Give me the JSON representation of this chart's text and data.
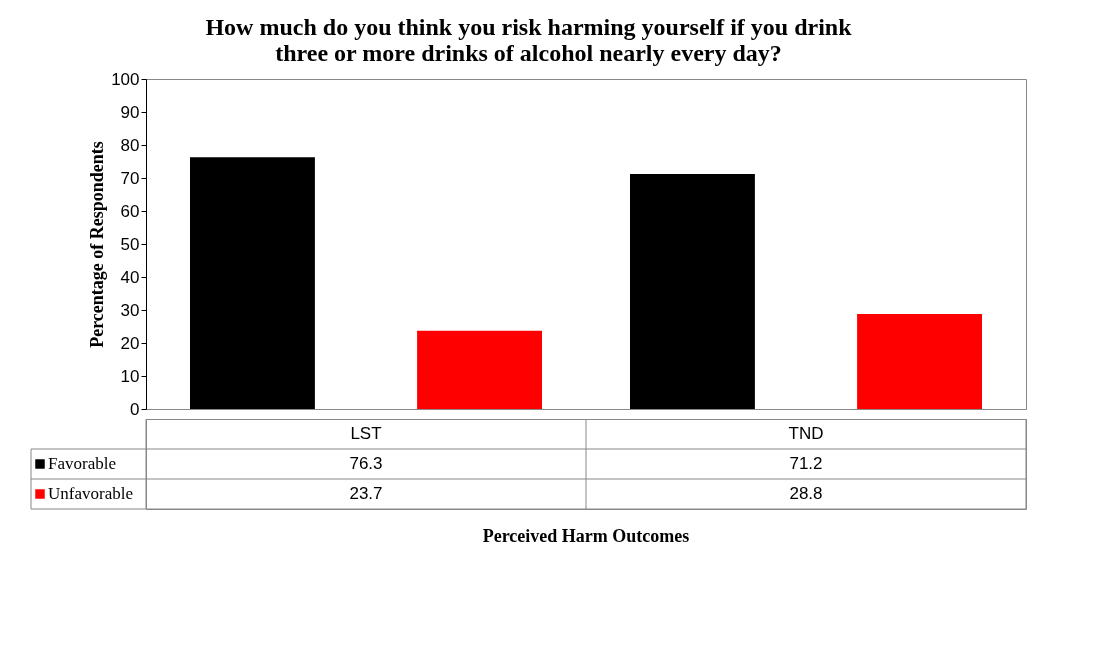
{
  "chart_data": {
    "type": "bar",
    "title": [
      "How much do you think you risk harming yourself if you drink",
      "three or more drinks of alcohol nearly every day?"
    ],
    "xlabel": "Perceived Harm Outcomes",
    "ylabel": "Percentage of Respondents",
    "categories": [
      "LST",
      "TND"
    ],
    "series": [
      {
        "name": "Favorable",
        "color": "#000000",
        "values": [
          76.3,
          71.2
        ]
      },
      {
        "name": "Unfavorable",
        "color": "#ff0000",
        "values": [
          23.7,
          28.8
        ]
      }
    ],
    "ylim": [
      0,
      100
    ],
    "yticks": [
      0,
      10,
      20,
      30,
      40,
      50,
      60,
      70,
      80,
      90,
      100
    ],
    "grid": false,
    "legend": "bottom",
    "data_labels": true
  }
}
